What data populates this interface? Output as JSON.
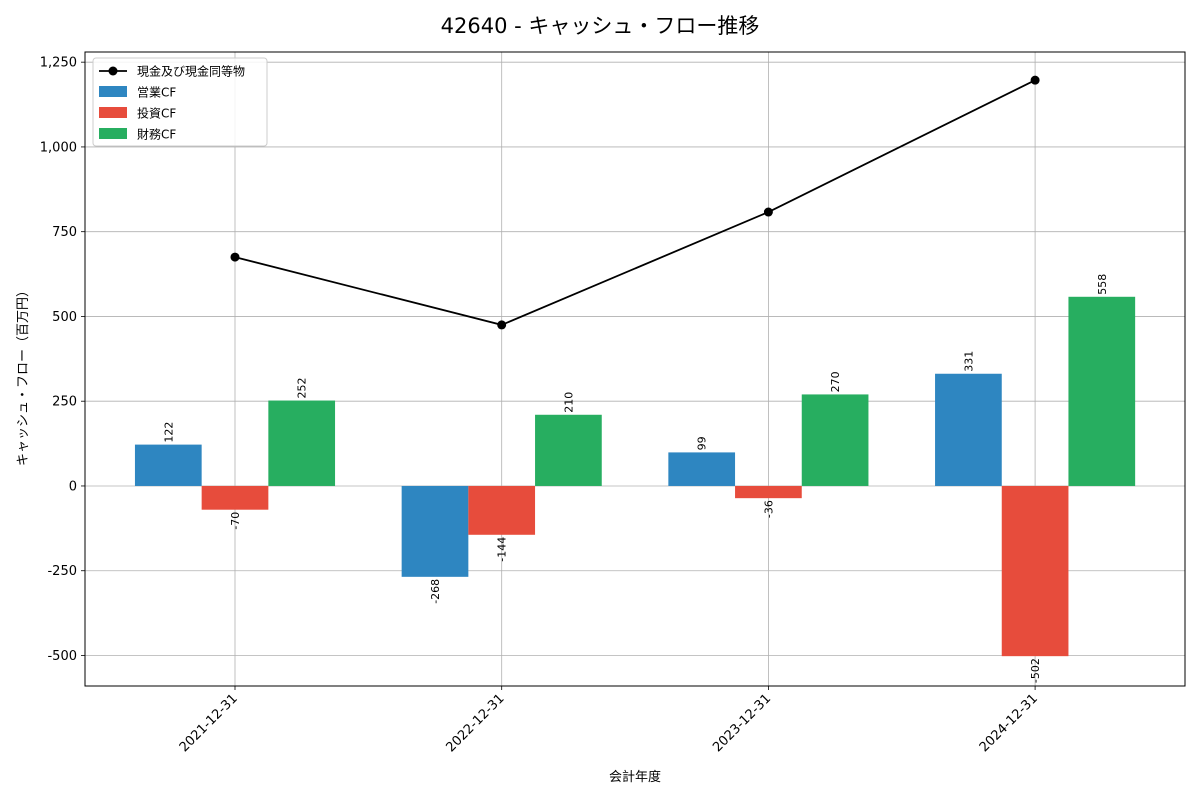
{
  "chart_data": {
    "type": "bar",
    "title": "42640 - キャッシュ・フロー推移",
    "xlabel": "会計年度",
    "ylabel": "キャッシュ・フロー（百万円）",
    "categories": [
      "2021-12-31",
      "2022-12-31",
      "2023-12-31",
      "2024-12-31"
    ],
    "ylim": [
      -590,
      1280
    ],
    "yticks": [
      -500,
      -250,
      0,
      250,
      500,
      750,
      1000,
      1250
    ],
    "ytick_labels": [
      "-500",
      "-250",
      "0",
      "250",
      "500",
      "750",
      "1,000",
      "1,250"
    ],
    "grid": true,
    "legend_position": "top-left",
    "series": [
      {
        "name": "営業CF",
        "kind": "bar",
        "color": "#2e86c1",
        "values": [
          122,
          -268,
          99,
          331
        ],
        "labels": [
          "122",
          "-268",
          "99",
          "331"
        ]
      },
      {
        "name": "投資CF",
        "kind": "bar",
        "color": "#e74c3c",
        "values": [
          -70,
          -144,
          -36,
          -502
        ],
        "labels": [
          "-70",
          "-144",
          "-36",
          "-502"
        ]
      },
      {
        "name": "財務CF",
        "kind": "bar",
        "color": "#27ae60",
        "values": [
          252,
          210,
          270,
          558
        ],
        "labels": [
          "252",
          "210",
          "270",
          "558"
        ]
      }
    ],
    "line_series": {
      "name": "現金及び現金同等物",
      "kind": "line",
      "color": "#000000",
      "values": [
        675,
        475,
        808,
        1197
      ]
    }
  }
}
